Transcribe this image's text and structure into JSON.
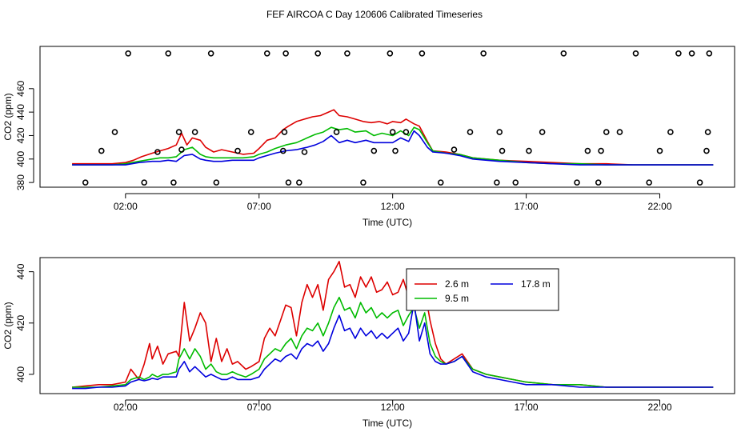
{
  "title": "FEF AIRCOA C  Day 120606  Calibrated Timeseries",
  "colors": {
    "red": "#dd0000",
    "green": "#00bb00",
    "blue": "#0000dd",
    "axis": "#000000"
  },
  "chart_data": [
    {
      "type": "line",
      "ylabel": "CO2 (ppm)",
      "xlabel": "Time (UTC)",
      "xlim": [
        -1.2,
        24.8
      ],
      "ylim": [
        376,
        496
      ],
      "x_ticks": [
        2,
        7,
        12,
        17,
        22
      ],
      "x_tick_labels": [
        "02:00",
        "07:00",
        "12:00",
        "17:00",
        "22:00"
      ],
      "y_ticks": [
        380,
        400,
        420,
        440,
        460
      ],
      "y_tick_labels": [
        "380",
        "400",
        "420",
        "440",
        "460"
      ],
      "legend": "none",
      "series": [
        {
          "color": "red",
          "x": [
            0,
            1,
            1.5,
            2,
            2.3,
            2.6,
            3,
            3.3,
            3.6,
            3.9,
            4.1,
            4.3,
            4.5,
            4.8,
            5,
            5.3,
            5.6,
            6,
            6.4,
            6.8,
            7,
            7.3,
            7.6,
            7.9,
            8.1,
            8.4,
            8.7,
            9,
            9.3,
            9.6,
            9.8,
            10,
            10.3,
            10.6,
            10.9,
            11.2,
            11.5,
            11.8,
            12,
            12.3,
            12.5,
            12.8,
            13,
            13.3,
            13.5,
            14,
            14.5,
            15,
            16,
            17,
            18,
            19,
            20,
            21,
            22,
            23,
            24
          ],
          "y": [
            396,
            396,
            396,
            397,
            399,
            402,
            405,
            407,
            409,
            412,
            422,
            412,
            418,
            416,
            410,
            406,
            408,
            406,
            404,
            405,
            409,
            416,
            418,
            425,
            428,
            432,
            434,
            436,
            437,
            440,
            442,
            437,
            436,
            434,
            432,
            431,
            432,
            430,
            432,
            431,
            434,
            430,
            428,
            415,
            407,
            406,
            404,
            401,
            399,
            398,
            397,
            396,
            396,
            395,
            395,
            395,
            395
          ]
        },
        {
          "color": "green",
          "x": [
            0,
            1,
            1.5,
            2,
            2.5,
            3,
            3.3,
            3.6,
            3.9,
            4.2,
            4.5,
            4.8,
            5,
            5.3,
            5.6,
            6,
            6.4,
            6.8,
            7,
            7.3,
            7.6,
            8,
            8.4,
            8.8,
            9.1,
            9.4,
            9.7,
            10,
            10.3,
            10.6,
            11,
            11.3,
            11.6,
            12,
            12.3,
            12.6,
            12.8,
            13,
            13.3,
            13.5,
            14,
            14.5,
            15,
            16,
            17,
            18,
            19,
            20,
            21,
            22,
            23,
            24
          ],
          "y": [
            395,
            395,
            395,
            396,
            398,
            400,
            401,
            401,
            402,
            408,
            410,
            404,
            402,
            401,
            401,
            401,
            401,
            402,
            404,
            406,
            409,
            412,
            414,
            418,
            421,
            423,
            427,
            425,
            426,
            423,
            424,
            420,
            422,
            420,
            424,
            420,
            427,
            425,
            414,
            407,
            405,
            404,
            401,
            399,
            397,
            396,
            396,
            395,
            395,
            395,
            395,
            395
          ]
        },
        {
          "color": "blue",
          "x": [
            0,
            1,
            1.5,
            2,
            2.5,
            3,
            3.3,
            3.6,
            3.9,
            4.2,
            4.5,
            4.8,
            5,
            5.3,
            5.6,
            6,
            6.4,
            6.8,
            7,
            7.3,
            7.6,
            8,
            8.4,
            8.8,
            9.1,
            9.4,
            9.7,
            10,
            10.3,
            10.6,
            11,
            11.3,
            11.6,
            12,
            12.3,
            12.6,
            12.8,
            13,
            13.3,
            13.5,
            14,
            14.5,
            15,
            16,
            17,
            18,
            19,
            20,
            21,
            22,
            23,
            24
          ],
          "y": [
            395,
            395,
            395,
            395,
            397,
            398,
            398,
            399,
            398,
            403,
            404,
            400,
            399,
            398,
            398,
            399,
            399,
            399,
            401,
            403,
            405,
            407,
            408,
            410,
            412,
            415,
            420,
            414,
            416,
            414,
            416,
            414,
            414,
            414,
            418,
            415,
            424,
            420,
            410,
            406,
            405,
            403,
            400,
            398,
            397,
            396,
            395,
            395,
            395,
            395,
            395,
            395
          ]
        }
      ],
      "scatter": {
        "x": [
          0.5,
          1.1,
          1.6,
          2.1,
          2.7,
          3.2,
          3.6,
          3.8,
          4.0,
          4.1,
          4.6,
          5.2,
          5.4,
          6.2,
          6.7,
          7.3,
          7.9,
          7.95,
          8.0,
          8.1,
          8.5,
          8.7,
          9.2,
          9.9,
          10.3,
          10.9,
          11.3,
          11.9,
          12.0,
          12.1,
          12.5,
          13.1,
          13.8,
          14.3,
          14.9,
          15.4,
          15.9,
          16.0,
          16.1,
          16.6,
          17.1,
          17.6,
          18.4,
          18.9,
          19.3,
          19.7,
          19.8,
          20.0,
          20.5,
          21.1,
          21.6,
          22.0,
          22.4,
          22.7,
          23.2,
          23.5,
          23.75,
          23.8,
          23.85
        ],
        "y": [
          380,
          407,
          423,
          490,
          380,
          406,
          490,
          380,
          423,
          408,
          423,
          490,
          380,
          407,
          423,
          490,
          407,
          423,
          490,
          380,
          380,
          406,
          490,
          423,
          490,
          380,
          407,
          490,
          423,
          407,
          423,
          490,
          380,
          408,
          423,
          490,
          380,
          423,
          407,
          380,
          407,
          423,
          490,
          380,
          407,
          380,
          407,
          423,
          423,
          490,
          380,
          407,
          423,
          490,
          490,
          380,
          407,
          423,
          490
        ]
      }
    },
    {
      "type": "line",
      "ylabel": "CO2 (ppm)",
      "xlabel": "Time (UTC)",
      "xlim": [
        -1.2,
        24.8
      ],
      "ylim": [
        392.5,
        445.5
      ],
      "x_ticks": [
        2,
        7,
        12,
        17,
        22
      ],
      "x_tick_labels": [
        "02:00",
        "07:00",
        "12:00",
        "17:00",
        "22:00"
      ],
      "y_ticks": [
        400,
        420,
        440
      ],
      "y_tick_labels": [
        "400",
        "420",
        "440"
      ],
      "legend": "top-right",
      "series": [
        {
          "name": "2.6 m",
          "color": "red",
          "x": [
            0,
            0.5,
            1,
            1.5,
            2,
            2.2,
            2.5,
            2.7,
            2.9,
            3,
            3.2,
            3.4,
            3.6,
            3.9,
            4,
            4.2,
            4.4,
            4.6,
            4.8,
            5,
            5.2,
            5.4,
            5.6,
            5.8,
            6,
            6.2,
            6.5,
            6.7,
            7,
            7.2,
            7.4,
            7.6,
            7.8,
            8,
            8.2,
            8.4,
            8.6,
            8.8,
            9,
            9.2,
            9.4,
            9.6,
            9.8,
            10,
            10.2,
            10.4,
            10.6,
            10.8,
            11,
            11.2,
            11.4,
            11.6,
            11.8,
            12,
            12.2,
            12.4,
            12.6,
            12.8,
            13,
            13.2,
            13.4,
            13.6,
            13.8,
            14,
            14.3,
            14.6,
            15,
            15.5,
            16,
            16.5,
            17,
            18,
            19,
            20,
            21,
            22,
            23,
            24
          ],
          "y": [
            395,
            395.5,
            396,
            396,
            397,
            402,
            398,
            404,
            412,
            406,
            411,
            404,
            408,
            409,
            407,
            428,
            413,
            418,
            424,
            420,
            405,
            414,
            405,
            410,
            404,
            405,
            402,
            403,
            405,
            414,
            418,
            415,
            421,
            427,
            426,
            415,
            428,
            435,
            430,
            435,
            425,
            437,
            440,
            444,
            434,
            435,
            430,
            438,
            434,
            438,
            432,
            433,
            436,
            431,
            432,
            437,
            430,
            434,
            430,
            433,
            421,
            412,
            406,
            404,
            406,
            408,
            402,
            400,
            399,
            398,
            397,
            396,
            396,
            395,
            395,
            395,
            395,
            395
          ]
        },
        {
          "name": "9.5 m",
          "color": "green",
          "x": [
            0,
            0.5,
            1,
            1.5,
            2,
            2.2,
            2.5,
            2.7,
            2.9,
            3,
            3.2,
            3.4,
            3.6,
            3.9,
            4,
            4.2,
            4.4,
            4.6,
            4.8,
            5,
            5.2,
            5.4,
            5.6,
            5.8,
            6,
            6.2,
            6.5,
            6.7,
            7,
            7.2,
            7.4,
            7.6,
            7.8,
            8,
            8.2,
            8.4,
            8.6,
            8.8,
            9,
            9.2,
            9.4,
            9.6,
            9.8,
            10,
            10.2,
            10.4,
            10.6,
            10.8,
            11,
            11.2,
            11.4,
            11.6,
            11.8,
            12,
            12.2,
            12.4,
            12.6,
            12.8,
            13,
            13.2,
            13.4,
            13.6,
            13.8,
            14,
            14.3,
            14.6,
            15,
            15.5,
            16,
            16.5,
            17,
            18,
            19,
            20,
            21,
            22,
            23,
            24
          ],
          "y": [
            395,
            395,
            395,
            395.5,
            396,
            398,
            399,
            398,
            399,
            400,
            399,
            400,
            400,
            401,
            406,
            410,
            406,
            410,
            407,
            402,
            404,
            401,
            400,
            400,
            401,
            400,
            399,
            400,
            402,
            406,
            408,
            410,
            409,
            412,
            414,
            410,
            415,
            418,
            417,
            420,
            415,
            420,
            426,
            430,
            425,
            426,
            422,
            428,
            424,
            426,
            422,
            424,
            422,
            424,
            425,
            419,
            423,
            426,
            418,
            424,
            412,
            407,
            405,
            404,
            405,
            407,
            402,
            400,
            399,
            398,
            397,
            396,
            396,
            395,
            395,
            395,
            395,
            395
          ]
        },
        {
          "name": "17.8 m",
          "color": "blue",
          "x": [
            0,
            0.5,
            1,
            1.5,
            2,
            2.2,
            2.5,
            2.7,
            2.9,
            3,
            3.2,
            3.4,
            3.6,
            3.9,
            4,
            4.2,
            4.4,
            4.6,
            4.8,
            5,
            5.2,
            5.4,
            5.6,
            5.8,
            6,
            6.2,
            6.5,
            6.7,
            7,
            7.2,
            7.4,
            7.6,
            7.8,
            8,
            8.2,
            8.4,
            8.6,
            8.8,
            9,
            9.2,
            9.4,
            9.6,
            9.8,
            10,
            10.2,
            10.4,
            10.6,
            10.8,
            11,
            11.2,
            11.4,
            11.6,
            11.8,
            12,
            12.2,
            12.4,
            12.6,
            12.8,
            13,
            13.2,
            13.4,
            13.6,
            13.8,
            14,
            14.3,
            14.6,
            15,
            15.5,
            16,
            16.5,
            17,
            18,
            19,
            20,
            21,
            22,
            23,
            24
          ],
          "y": [
            394.5,
            394.5,
            395,
            395,
            395.5,
            397,
            398,
            397.5,
            398,
            398.5,
            398,
            399,
            399,
            399,
            402,
            405,
            401,
            403,
            401,
            399,
            400,
            399,
            398,
            398,
            399,
            398,
            398,
            398,
            399,
            402,
            404,
            406,
            405,
            407,
            408,
            406,
            410,
            412,
            411,
            413,
            409,
            412,
            418,
            423,
            417,
            418,
            414,
            418,
            415,
            417,
            414,
            416,
            414,
            416,
            418,
            413,
            416,
            428,
            413,
            420,
            408,
            405,
            404,
            404,
            405,
            407,
            401,
            399,
            398,
            397,
            396,
            396,
            395,
            395,
            395,
            395,
            395,
            395
          ]
        }
      ]
    }
  ]
}
